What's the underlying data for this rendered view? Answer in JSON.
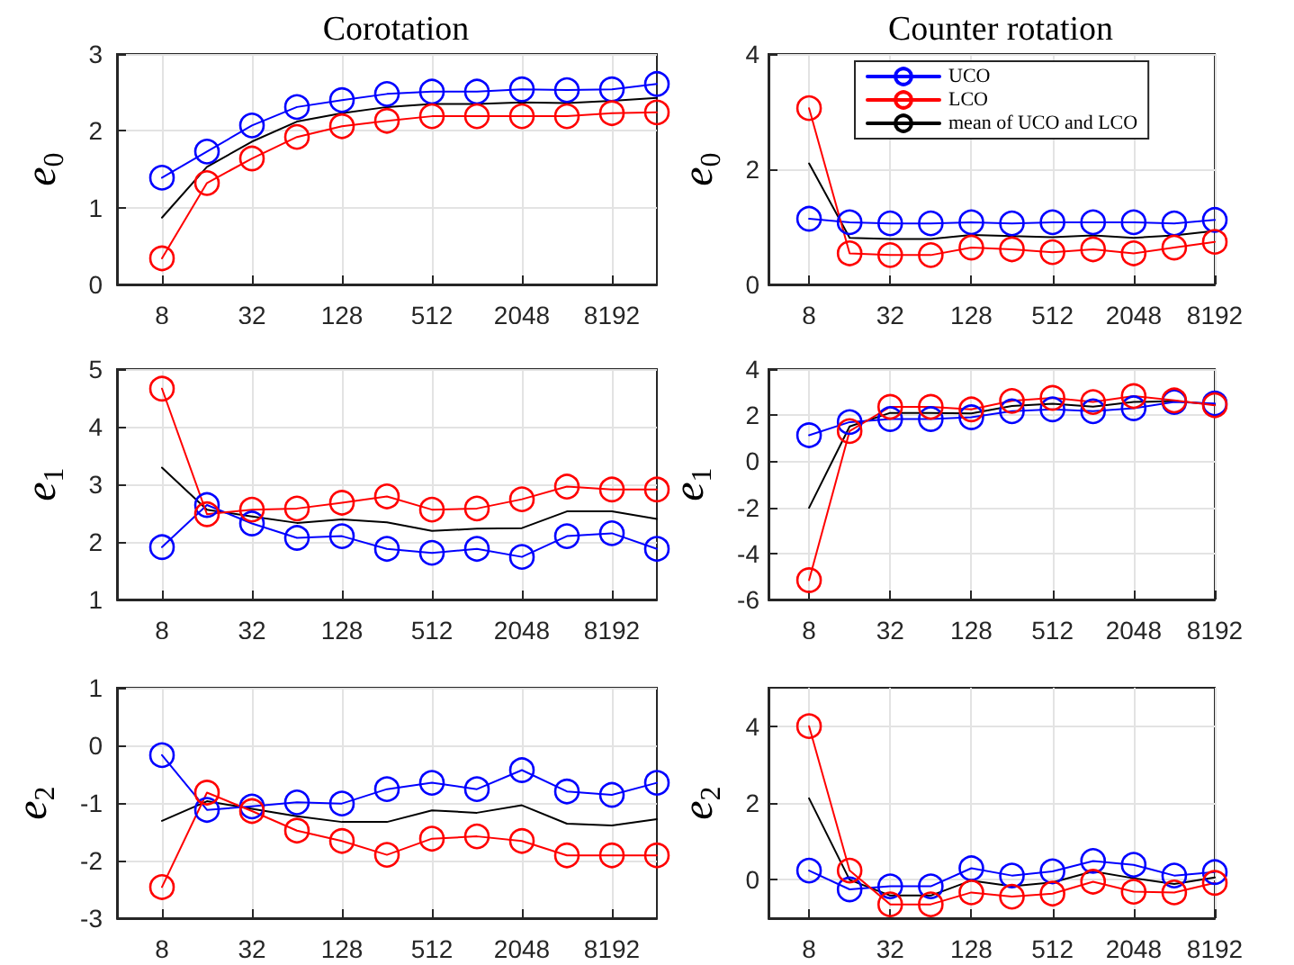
{
  "chart_data": [
    {
      "type": "line",
      "title": "Corotation",
      "ylabel": "e$_{0}$",
      "log": "x",
      "x": [
        8,
        16,
        32,
        64,
        128,
        256,
        512,
        1024,
        2048,
        4096,
        8192,
        16384
      ],
      "xlim": [
        4,
        16384
      ],
      "xticks": [
        8,
        32,
        128,
        512,
        2048,
        8192
      ],
      "ylim": [
        0,
        3
      ],
      "yticks": [
        0,
        1,
        2,
        3
      ],
      "grid": true,
      "legend": false,
      "series": [
        {
          "color": "#0000ff",
          "marker": "circle",
          "values": [
            1.39,
            1.73,
            2.07,
            2.31,
            2.4,
            2.48,
            2.51,
            2.51,
            2.54,
            2.53,
            2.54,
            2.61
          ]
        },
        {
          "color": "#ff0000",
          "marker": "circle",
          "values": [
            0.34,
            1.32,
            1.64,
            1.92,
            2.06,
            2.13,
            2.19,
            2.19,
            2.19,
            2.19,
            2.23,
            2.24
          ]
        },
        {
          "color": "#000000",
          "marker": "none",
          "values": [
            0.87,
            1.53,
            1.86,
            2.12,
            2.23,
            2.31,
            2.35,
            2.35,
            2.37,
            2.36,
            2.39,
            2.43
          ]
        }
      ]
    },
    {
      "type": "line",
      "title": "Counter rotation",
      "ylabel": "e$_{0}$",
      "log": "x",
      "x": [
        8,
        16,
        32,
        64,
        128,
        256,
        512,
        1024,
        2048,
        4096,
        8192
      ],
      "xlim": [
        4,
        8192
      ],
      "xticks": [
        8,
        32,
        128,
        512,
        2048,
        8192
      ],
      "ylim": [
        0,
        4
      ],
      "yticks": [
        0,
        2,
        4
      ],
      "grid": true,
      "legend": "top",
      "series": [
        {
          "name": "UCO",
          "color": "#0000ff",
          "marker": "circle",
          "values": [
            1.14,
            1.08,
            1.06,
            1.06,
            1.08,
            1.06,
            1.08,
            1.08,
            1.08,
            1.06,
            1.12
          ]
        },
        {
          "name": "LCO",
          "color": "#ff0000",
          "marker": "circle",
          "values": [
            3.06,
            0.54,
            0.51,
            0.51,
            0.64,
            0.61,
            0.56,
            0.61,
            0.54,
            0.64,
            0.74
          ]
        },
        {
          "name": "mean of UCO and LCO",
          "color": "#000000",
          "marker": "none",
          "values": [
            2.1,
            0.81,
            0.79,
            0.79,
            0.86,
            0.84,
            0.82,
            0.85,
            0.81,
            0.85,
            0.93
          ]
        }
      ]
    },
    {
      "type": "line",
      "ylabel": "e$_{1}$",
      "log": "x",
      "x": [
        8,
        16,
        32,
        64,
        128,
        256,
        512,
        1024,
        2048,
        4096,
        8192,
        16384
      ],
      "xlim": [
        4,
        16384
      ],
      "xticks": [
        8,
        32,
        128,
        512,
        2048,
        8192
      ],
      "ylim": [
        1,
        5
      ],
      "yticks": [
        1,
        2,
        3,
        4,
        5
      ],
      "grid": true,
      "legend": false,
      "series": [
        {
          "color": "#0000ff",
          "marker": "circle",
          "values": [
            1.91,
            2.64,
            2.32,
            2.07,
            2.1,
            1.88,
            1.81,
            1.88,
            1.74,
            2.1,
            2.15,
            1.88
          ]
        },
        {
          "color": "#ff0000",
          "marker": "circle",
          "values": [
            4.66,
            2.48,
            2.56,
            2.58,
            2.68,
            2.79,
            2.56,
            2.58,
            2.74,
            2.96,
            2.91,
            2.91
          ]
        },
        {
          "color": "#000000",
          "marker": "none",
          "values": [
            3.29,
            2.56,
            2.44,
            2.33,
            2.39,
            2.34,
            2.19,
            2.23,
            2.24,
            2.53,
            2.53,
            2.4
          ]
        }
      ]
    },
    {
      "type": "line",
      "ylabel": "e$_{1}$",
      "log": "x",
      "x": [
        8,
        16,
        32,
        64,
        128,
        256,
        512,
        1024,
        2048,
        4096,
        8192
      ],
      "xlim": [
        4,
        8192
      ],
      "xticks": [
        8,
        32,
        128,
        512,
        2048,
        8192
      ],
      "ylim": [
        -6,
        4
      ],
      "yticks": [
        -6,
        -4,
        -2,
        0,
        2,
        4
      ],
      "grid": true,
      "legend": false,
      "series": [
        {
          "color": "#0000ff",
          "marker": "circle",
          "values": [
            1.13,
            1.7,
            1.83,
            1.83,
            1.91,
            2.17,
            2.25,
            2.17,
            2.3,
            2.57,
            2.51
          ]
        },
        {
          "color": "#ff0000",
          "marker": "circle",
          "values": [
            -5.16,
            1.31,
            2.36,
            2.36,
            2.25,
            2.62,
            2.75,
            2.57,
            2.83,
            2.64,
            2.43
          ]
        },
        {
          "color": "#000000",
          "marker": "none",
          "values": [
            -2.02,
            1.51,
            2.1,
            2.1,
            2.08,
            2.4,
            2.5,
            2.37,
            2.57,
            2.61,
            2.47
          ]
        }
      ]
    },
    {
      "type": "line",
      "ylabel": "e$_{2}$",
      "log": "x",
      "x": [
        8,
        16,
        32,
        64,
        128,
        256,
        512,
        1024,
        2048,
        4096,
        8192,
        16384
      ],
      "xlim": [
        4,
        16384
      ],
      "xticks": [
        8,
        32,
        128,
        512,
        2048,
        8192
      ],
      "ylim": [
        -3,
        1
      ],
      "yticks": [
        -3,
        -2,
        -1,
        0,
        1
      ],
      "grid": true,
      "legend": false,
      "series": [
        {
          "color": "#0000ff",
          "marker": "circle",
          "values": [
            -0.17,
            -1.12,
            -1.06,
            -0.99,
            -1.01,
            -0.76,
            -0.65,
            -0.76,
            -0.43,
            -0.8,
            -0.86,
            -0.65
          ]
        },
        {
          "color": "#ff0000",
          "marker": "circle",
          "values": [
            -2.46,
            -0.82,
            -1.14,
            -1.48,
            -1.66,
            -1.9,
            -1.62,
            -1.58,
            -1.66,
            -1.91,
            -1.91,
            -1.91
          ]
        },
        {
          "color": "#000000",
          "marker": "none",
          "values": [
            -1.31,
            -0.97,
            -1.1,
            -1.23,
            -1.33,
            -1.33,
            -1.13,
            -1.17,
            -1.04,
            -1.36,
            -1.39,
            -1.28
          ]
        }
      ]
    },
    {
      "type": "line",
      "ylabel": "e$_{2}$",
      "log": "x",
      "x": [
        8,
        16,
        32,
        64,
        128,
        256,
        512,
        1024,
        2048,
        4096,
        8192
      ],
      "xlim": [
        4,
        8192
      ],
      "xticks": [
        8,
        32,
        128,
        512,
        2048,
        8192
      ],
      "ylim": [
        -1,
        5
      ],
      "yticks": [
        0,
        2,
        4
      ],
      "grid": true,
      "legend": false,
      "series": [
        {
          "color": "#0000ff",
          "marker": "circle",
          "values": [
            0.24,
            -0.25,
            -0.17,
            -0.17,
            0.3,
            0.11,
            0.22,
            0.49,
            0.39,
            0.11,
            0.2
          ]
        },
        {
          "color": "#ff0000",
          "marker": "circle",
          "values": [
            4.0,
            0.24,
            -0.64,
            -0.64,
            -0.33,
            -0.44,
            -0.36,
            -0.05,
            -0.31,
            -0.33,
            -0.08
          ]
        },
        {
          "color": "#000000",
          "marker": "none",
          "values": [
            2.12,
            0.0,
            -0.41,
            -0.41,
            -0.02,
            -0.17,
            -0.07,
            0.22,
            0.04,
            -0.11,
            0.06
          ]
        }
      ]
    }
  ]
}
